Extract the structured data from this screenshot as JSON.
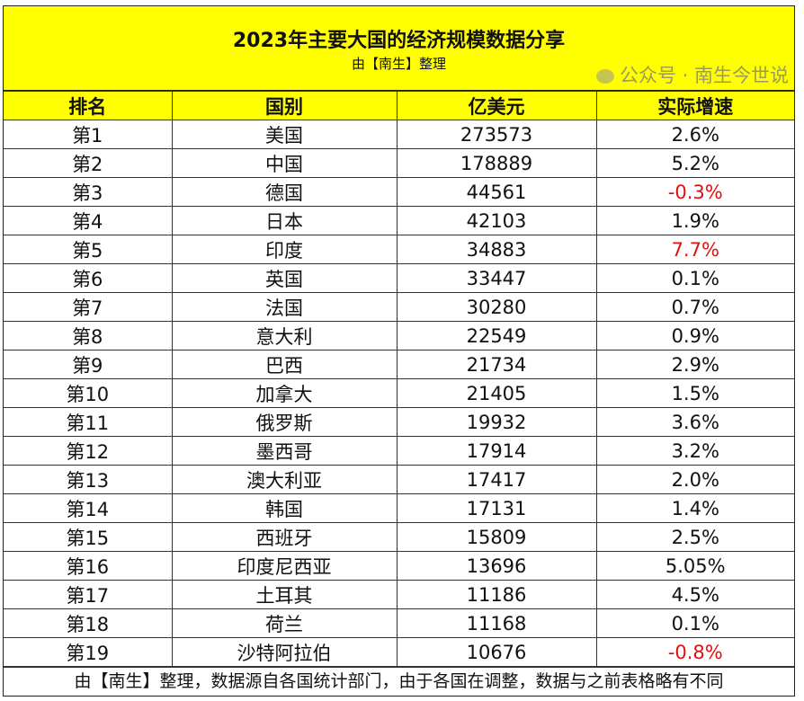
{
  "title": "2023年主要大国的经济规模数据分享",
  "subtitle": "由【南生】整理",
  "columns": [
    "排名",
    "国别",
    "亿美元",
    "实际增速"
  ],
  "highlight_color": "#ffff00",
  "negative_color": "#e01010",
  "rows": [
    {
      "rank": "第1",
      "country": "美国",
      "gdp": "273573",
      "growth": "2.6%",
      "red": false
    },
    {
      "rank": "第2",
      "country": "中国",
      "gdp": "178889",
      "growth": "5.2%",
      "red": false
    },
    {
      "rank": "第3",
      "country": "德国",
      "gdp": "44561",
      "growth": "-0.3%",
      "red": true
    },
    {
      "rank": "第4",
      "country": "日本",
      "gdp": "42103",
      "growth": "1.9%",
      "red": false
    },
    {
      "rank": "第5",
      "country": "印度",
      "gdp": "34883",
      "growth": "7.7%",
      "red": true
    },
    {
      "rank": "第6",
      "country": "英国",
      "gdp": "33447",
      "growth": "0.1%",
      "red": false
    },
    {
      "rank": "第7",
      "country": "法国",
      "gdp": "30280",
      "growth": "0.7%",
      "red": false
    },
    {
      "rank": "第8",
      "country": "意大利",
      "gdp": "22549",
      "growth": "0.9%",
      "red": false
    },
    {
      "rank": "第9",
      "country": "巴西",
      "gdp": "21734",
      "growth": "2.9%",
      "red": false
    },
    {
      "rank": "第10",
      "country": "加拿大",
      "gdp": "21405",
      "growth": "1.5%",
      "red": false
    },
    {
      "rank": "第11",
      "country": "俄罗斯",
      "gdp": "19932",
      "growth": "3.6%",
      "red": false
    },
    {
      "rank": "第12",
      "country": "墨西哥",
      "gdp": "17914",
      "growth": "3.2%",
      "red": false
    },
    {
      "rank": "第13",
      "country": "澳大利亚",
      "gdp": "17417",
      "growth": "2.0%",
      "red": false
    },
    {
      "rank": "第14",
      "country": "韩国",
      "gdp": "17131",
      "growth": "1.4%",
      "red": false
    },
    {
      "rank": "第15",
      "country": "西班牙",
      "gdp": "15809",
      "growth": "2.5%",
      "red": false
    },
    {
      "rank": "第16",
      "country": "印度尼西亚",
      "gdp": "13696",
      "growth": "5.05%",
      "red": false
    },
    {
      "rank": "第17",
      "country": "土耳其",
      "gdp": "11186",
      "growth": "4.5%",
      "red": false
    },
    {
      "rank": "第18",
      "country": "荷兰",
      "gdp": "11168",
      "growth": "0.1%",
      "red": false
    },
    {
      "rank": "第19",
      "country": "沙特阿拉伯",
      "gdp": "10676",
      "growth": "-0.8%",
      "red": true
    }
  ],
  "footer": "由【南生】整理，数据源自各国统计部门，由于各国在调整，数据与之前表格略有不同",
  "watermark": "公众号 · 南生今世说"
}
